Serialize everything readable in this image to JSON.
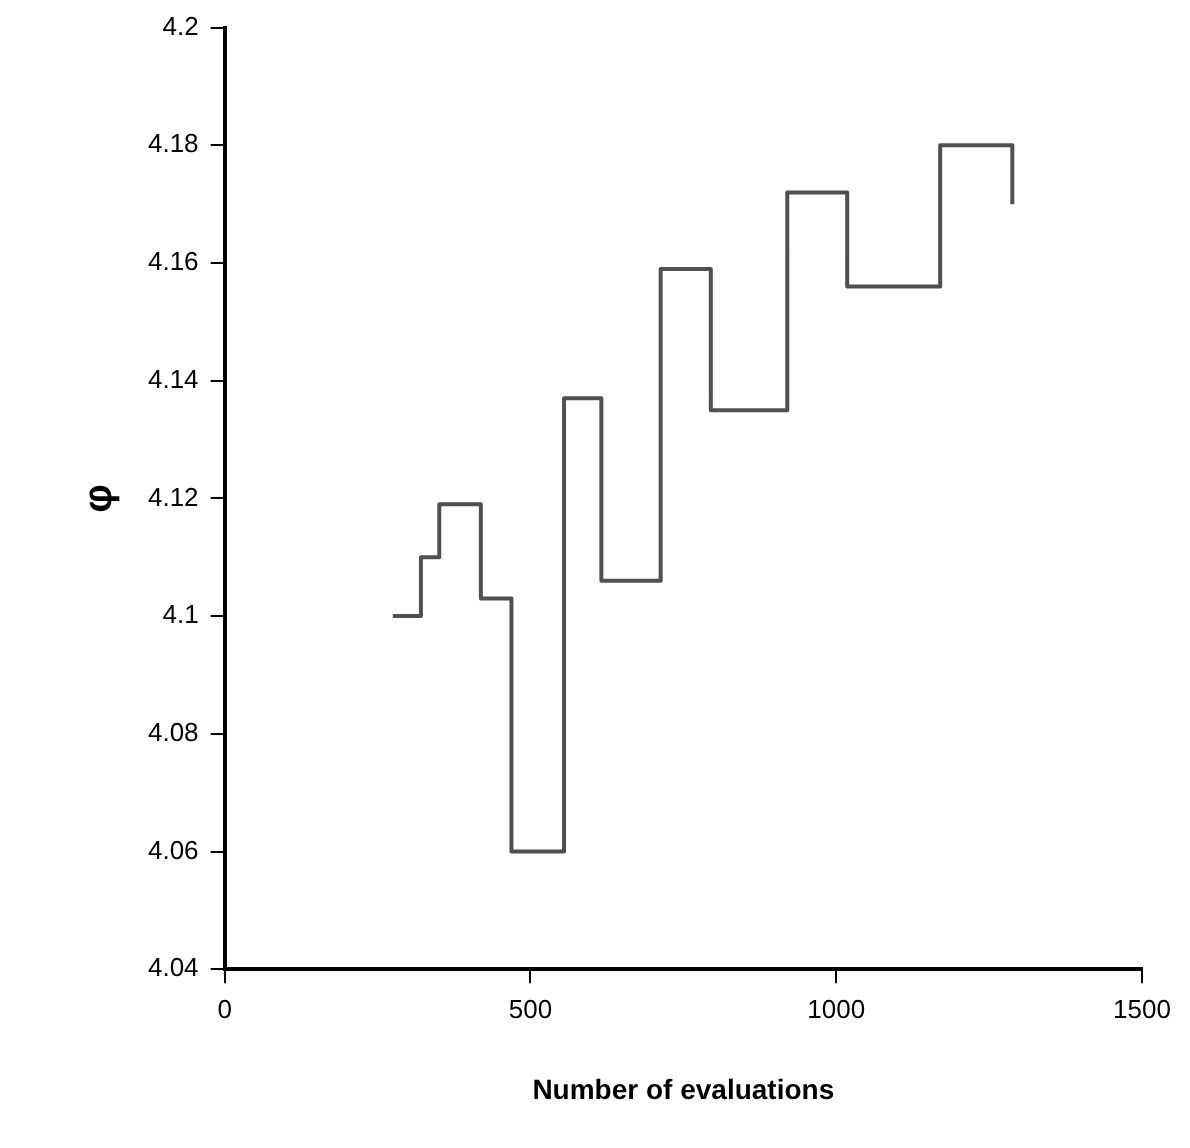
{
  "chart_data": {
    "type": "step",
    "xlabel": "Number of evaluations",
    "ylabel": "φ",
    "x": [
      275,
      321,
      351,
      419,
      469,
      555,
      616,
      713,
      795,
      920,
      1018,
      1170,
      1288
    ],
    "series": [
      {
        "color": "#505050",
        "values": [
          4.1,
          4.11,
          4.119,
          4.103,
          4.06,
          4.137,
          4.106,
          4.159,
          4.135,
          4.172,
          4.156,
          4.18,
          4.17
        ]
      }
    ],
    "xlim": [
      0,
      1500
    ],
    "xticks": [
      0,
      500,
      1000,
      1500
    ],
    "ylim": [
      4.04,
      4.2
    ],
    "yticks": [
      4.04,
      4.06,
      4.08,
      4.1,
      4.12,
      4.14,
      4.16,
      4.18,
      4.2
    ],
    "grid": false,
    "legend": false,
    "marker": "none",
    "line_style": "solid"
  }
}
